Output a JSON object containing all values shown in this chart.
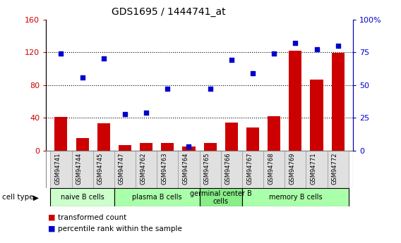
{
  "title": "GDS1695 / 1444741_at",
  "samples": [
    "GSM94741",
    "GSM94744",
    "GSM94745",
    "GSM94747",
    "GSM94762",
    "GSM94763",
    "GSM94764",
    "GSM94765",
    "GSM94766",
    "GSM94767",
    "GSM94768",
    "GSM94769",
    "GSM94771",
    "GSM94772"
  ],
  "bar_values": [
    41,
    15,
    33,
    7,
    9,
    9,
    5,
    9,
    34,
    28,
    42,
    122,
    87,
    119
  ],
  "dot_values": [
    74,
    56,
    70,
    28,
    29,
    47,
    3,
    47,
    69,
    59,
    74,
    82,
    77,
    80
  ],
  "bar_color": "#cc0000",
  "dot_color": "#0000cc",
  "left_ylim": [
    0,
    160
  ],
  "right_ylim": [
    0,
    100
  ],
  "left_yticks": [
    0,
    40,
    80,
    120,
    160
  ],
  "right_yticks": [
    0,
    25,
    50,
    75,
    100
  ],
  "right_yticklabels": [
    "0",
    "25",
    "50",
    "75",
    "100%"
  ],
  "cell_groups": [
    {
      "label": "naive B cells",
      "start": 0,
      "end": 3,
      "color": "#ccffcc"
    },
    {
      "label": "plasma B cells",
      "start": 3,
      "end": 7,
      "color": "#aaffaa"
    },
    {
      "label": "germinal center B\ncells",
      "start": 7,
      "end": 9,
      "color": "#88ee88"
    },
    {
      "label": "memory B cells",
      "start": 9,
      "end": 14,
      "color": "#aaffaa"
    }
  ],
  "legend_bar_label": "transformed count",
  "legend_dot_label": "percentile rank within the sample",
  "cell_type_label": "cell type",
  "sample_bg_color": "#e0e0e0",
  "tick_label_color_left": "#cc0000",
  "tick_label_color_right": "#0000cc"
}
